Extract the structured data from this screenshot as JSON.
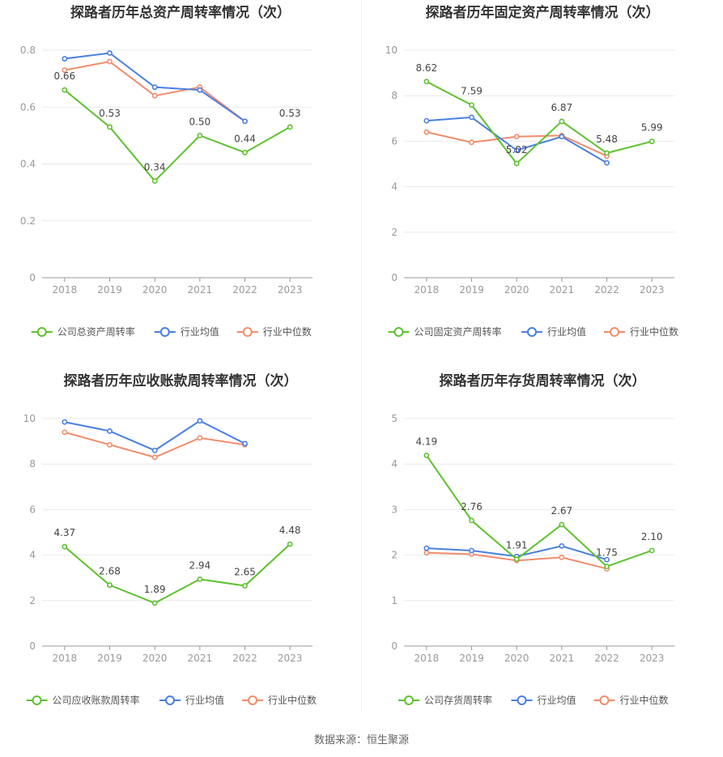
{
  "source_text": "数据来源：恒生聚源",
  "colors": {
    "company": "#5ec12f",
    "avg": "#4a7fe0",
    "median": "#f28c6b",
    "grid": "#e9e9e9",
    "axis": "#999999"
  },
  "legend": {
    "avg": "行业均值",
    "median": "行业中位数"
  },
  "chart_data": [
    {
      "type": "line",
      "title": "探路者历年总资产周转率情况（次）",
      "categories": [
        "2018",
        "2019",
        "2020",
        "2021",
        "2022",
        "2023"
      ],
      "ylim": [
        0,
        0.8
      ],
      "yticks": [
        "0",
        "0.2",
        "0.4",
        "0.6",
        "0.8"
      ],
      "series": [
        {
          "name": "公司总资产周转率",
          "values": [
            0.66,
            0.53,
            0.34,
            0.5,
            0.44,
            0.53
          ],
          "labels": [
            "0.66",
            "0.53",
            "0.34",
            "0.50",
            "0.44",
            "0.53"
          ]
        },
        {
          "name": "行业均值",
          "values": [
            0.77,
            0.79,
            0.67,
            0.66,
            0.55,
            null
          ]
        },
        {
          "name": "行业中位数",
          "values": [
            0.73,
            0.76,
            0.64,
            0.67,
            0.55,
            null
          ]
        }
      ]
    },
    {
      "type": "line",
      "title": "探路者历年固定资产周转率情况（次）",
      "categories": [
        "2018",
        "2019",
        "2020",
        "2021",
        "2022",
        "2023"
      ],
      "ylim": [
        0,
        10
      ],
      "yticks": [
        "0",
        "2",
        "4",
        "6",
        "8",
        "10"
      ],
      "series": [
        {
          "name": "公司固定资产周转率",
          "values": [
            8.62,
            7.59,
            5.02,
            6.87,
            5.48,
            5.99
          ],
          "labels": [
            "8.62",
            "7.59",
            "5.02",
            "6.87",
            "5.48",
            "5.99"
          ]
        },
        {
          "name": "行业均值",
          "values": [
            6.9,
            7.05,
            5.6,
            6.2,
            5.05,
            null
          ]
        },
        {
          "name": "行业中位数",
          "values": [
            6.4,
            5.95,
            6.2,
            6.25,
            5.35,
            null
          ]
        }
      ]
    },
    {
      "type": "line",
      "title": "探路者历年应收账款周转率情况（次）",
      "categories": [
        "2018",
        "2019",
        "2020",
        "2021",
        "2022",
        "2023"
      ],
      "ylim": [
        0,
        10
      ],
      "yticks": [
        "0",
        "2",
        "4",
        "6",
        "8",
        "10"
      ],
      "series": [
        {
          "name": "公司应收账款周转率",
          "values": [
            4.37,
            2.68,
            1.89,
            2.94,
            2.65,
            4.48
          ],
          "labels": [
            "4.37",
            "2.68",
            "1.89",
            "2.94",
            "2.65",
            "4.48"
          ]
        },
        {
          "name": "行业均值",
          "values": [
            9.85,
            9.45,
            8.6,
            9.9,
            8.9,
            null
          ]
        },
        {
          "name": "行业中位数",
          "values": [
            9.4,
            8.85,
            8.3,
            9.15,
            8.85,
            null
          ]
        }
      ]
    },
    {
      "type": "line",
      "title": "探路者历年存货周转率情况（次）",
      "categories": [
        "2018",
        "2019",
        "2020",
        "2021",
        "2022",
        "2023"
      ],
      "ylim": [
        0,
        5
      ],
      "yticks": [
        "0",
        "1",
        "2",
        "3",
        "4",
        "5"
      ],
      "series": [
        {
          "name": "公司存货周转率",
          "values": [
            4.19,
            2.76,
            1.91,
            2.67,
            1.75,
            2.1
          ],
          "labels": [
            "4.19",
            "2.76",
            "1.91",
            "2.67",
            "1.75",
            "2.10"
          ]
        },
        {
          "name": "行业均值",
          "values": [
            2.15,
            2.1,
            1.97,
            2.2,
            1.9,
            null
          ]
        },
        {
          "name": "行业中位数",
          "values": [
            2.05,
            2.02,
            1.88,
            1.95,
            1.7,
            null
          ]
        }
      ]
    }
  ]
}
